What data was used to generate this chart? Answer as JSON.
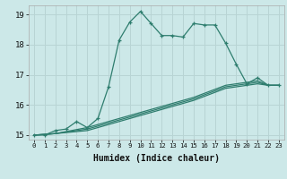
{
  "xlabel": "Humidex (Indice chaleur)",
  "background_color": "#cce8e8",
  "grid_color": "#b8d4d4",
  "line_color": "#2e7d6e",
  "xlim": [
    -0.5,
    23.5
  ],
  "ylim": [
    14.85,
    19.3
  ],
  "xtick_labels": [
    "0",
    "1",
    "2",
    "3",
    "4",
    "5",
    "6",
    "7",
    "8",
    "9",
    "10",
    "11",
    "12",
    "13",
    "14",
    "15",
    "16",
    "17",
    "18",
    "19",
    "20",
    "21",
    "22",
    "23"
  ],
  "ytick_values": [
    15,
    16,
    17,
    18,
    19
  ],
  "ytick_labels": [
    "15",
    "16",
    "17",
    "18",
    "19"
  ],
  "series": [
    {
      "x": [
        0,
        1,
        2,
        3,
        4,
        5,
        6,
        7,
        8,
        9,
        10,
        11,
        12,
        13,
        14,
        15,
        16,
        17,
        18,
        19,
        20,
        21,
        22,
        23
      ],
      "y": [
        15.0,
        15.0,
        15.15,
        15.2,
        15.45,
        15.25,
        15.55,
        16.6,
        18.15,
        18.75,
        19.1,
        18.7,
        18.3,
        18.3,
        18.25,
        18.7,
        18.65,
        18.65,
        18.05,
        17.35,
        16.7,
        16.9,
        16.65,
        16.65
      ],
      "marker": true
    },
    {
      "x": [
        0,
        2,
        5,
        10,
        15,
        18,
        20,
        21,
        22,
        23
      ],
      "y": [
        15.0,
        15.05,
        15.15,
        15.65,
        16.15,
        16.55,
        16.65,
        16.7,
        16.65,
        16.65
      ],
      "marker": false
    },
    {
      "x": [
        0,
        2,
        5,
        10,
        15,
        18,
        20,
        21,
        22,
        23
      ],
      "y": [
        15.0,
        15.05,
        15.2,
        15.7,
        16.2,
        16.6,
        16.7,
        16.75,
        16.65,
        16.65
      ],
      "marker": false
    },
    {
      "x": [
        0,
        2,
        5,
        10,
        15,
        18,
        20,
        21,
        22,
        23
      ],
      "y": [
        15.0,
        15.05,
        15.25,
        15.75,
        16.25,
        16.65,
        16.75,
        16.8,
        16.65,
        16.65
      ],
      "marker": false
    }
  ]
}
